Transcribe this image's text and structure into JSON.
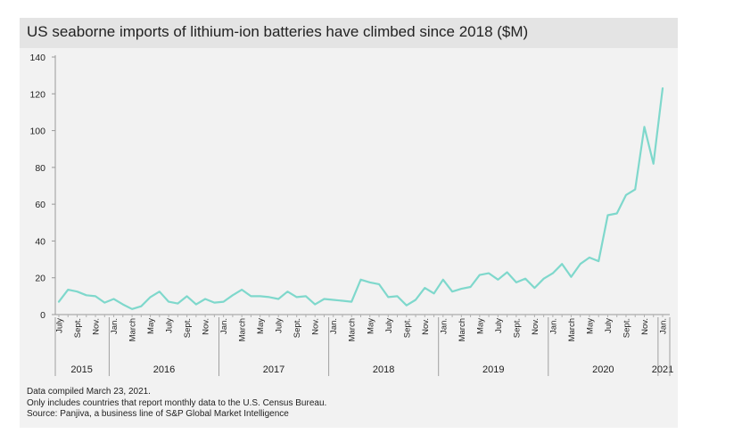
{
  "chart_data": {
    "type": "line",
    "title": "US seaborne imports of lithium-ion batteries have climbed since 2018 ($M)",
    "xlabel": "",
    "ylabel": "",
    "ylim": [
      0,
      140
    ],
    "y_ticks": [
      0,
      20,
      40,
      60,
      80,
      100,
      120,
      140
    ],
    "grid": false,
    "legend": "none",
    "line_color": "#7fd8cc",
    "x": [
      "2015-07",
      "2015-08",
      "2015-09",
      "2015-10",
      "2015-11",
      "2015-12",
      "2016-01",
      "2016-02",
      "2016-03",
      "2016-04",
      "2016-05",
      "2016-06",
      "2016-07",
      "2016-08",
      "2016-09",
      "2016-10",
      "2016-11",
      "2016-12",
      "2017-01",
      "2017-02",
      "2017-03",
      "2017-04",
      "2017-05",
      "2017-06",
      "2017-07",
      "2017-08",
      "2017-09",
      "2017-10",
      "2017-11",
      "2017-12",
      "2018-01",
      "2018-02",
      "2018-03",
      "2018-04",
      "2018-05",
      "2018-06",
      "2018-07",
      "2018-08",
      "2018-09",
      "2018-10",
      "2018-11",
      "2018-12",
      "2019-01",
      "2019-02",
      "2019-03",
      "2019-04",
      "2019-05",
      "2019-06",
      "2019-07",
      "2019-08",
      "2019-09",
      "2019-10",
      "2019-11",
      "2019-12",
      "2020-01",
      "2020-02",
      "2020-03",
      "2020-04",
      "2020-05",
      "2020-06",
      "2020-07",
      "2020-08",
      "2020-09",
      "2020-10",
      "2020-11",
      "2020-12",
      "2021-01"
    ],
    "values": [
      7,
      13.5,
      12.5,
      10.5,
      10,
      6.5,
      8.5,
      5.5,
      3,
      4.5,
      9.5,
      12.5,
      7,
      6,
      10,
      5.5,
      8.5,
      6.5,
      7,
      10.5,
      13.5,
      10,
      10,
      9.5,
      8.5,
      12.5,
      9.5,
      10,
      5.5,
      8.5,
      8,
      7.5,
      7,
      19,
      17.5,
      16.5,
      9.5,
      10,
      5,
      8,
      14.5,
      11.5,
      19,
      12.5,
      14,
      15,
      21.5,
      22.5,
      19,
      23,
      17.5,
      19.5,
      14.5,
      19.5,
      22.5,
      27.5,
      20.5,
      27.5,
      31,
      29,
      54,
      55,
      65,
      68,
      102,
      82,
      123
    ],
    "month_ticks": [
      {
        "label": "July",
        "x": "2015-07"
      },
      {
        "label": "Sept.",
        "x": "2015-09"
      },
      {
        "label": "Nov.",
        "x": "2015-11"
      },
      {
        "label": "Jan.",
        "x": "2016-01"
      },
      {
        "label": "March",
        "x": "2016-03"
      },
      {
        "label": "May",
        "x": "2016-05"
      },
      {
        "label": "July",
        "x": "2016-07"
      },
      {
        "label": "Sept.",
        "x": "2016-09"
      },
      {
        "label": "Nov.",
        "x": "2016-11"
      },
      {
        "label": "Jan.",
        "x": "2017-01"
      },
      {
        "label": "March",
        "x": "2017-03"
      },
      {
        "label": "May",
        "x": "2017-05"
      },
      {
        "label": "July",
        "x": "2017-07"
      },
      {
        "label": "Sept.",
        "x": "2017-09"
      },
      {
        "label": "Nov.",
        "x": "2017-11"
      },
      {
        "label": "Jan.",
        "x": "2018-01"
      },
      {
        "label": "March",
        "x": "2018-03"
      },
      {
        "label": "May",
        "x": "2018-05"
      },
      {
        "label": "July",
        "x": "2018-07"
      },
      {
        "label": "Sept.",
        "x": "2018-09"
      },
      {
        "label": "Nov.",
        "x": "2018-11"
      },
      {
        "label": "Jan.",
        "x": "2019-01"
      },
      {
        "label": "March",
        "x": "2019-03"
      },
      {
        "label": "May",
        "x": "2019-05"
      },
      {
        "label": "July",
        "x": "2019-07"
      },
      {
        "label": "Sept.",
        "x": "2019-09"
      },
      {
        "label": "Nov.",
        "x": "2019-11"
      },
      {
        "label": "Jan.",
        "x": "2020-01"
      },
      {
        "label": "March",
        "x": "2020-03"
      },
      {
        "label": "May",
        "x": "2020-05"
      },
      {
        "label": "July",
        "x": "2020-07"
      },
      {
        "label": "Sept.",
        "x": "2020-09"
      },
      {
        "label": "Nov.",
        "x": "2020-11"
      },
      {
        "label": "Jan.",
        "x": "2021-01"
      }
    ],
    "years": [
      {
        "label": "2015",
        "start": "2015-07",
        "end": "2015-12"
      },
      {
        "label": "2016",
        "start": "2016-01",
        "end": "2016-12"
      },
      {
        "label": "2017",
        "start": "2017-01",
        "end": "2017-12"
      },
      {
        "label": "2018",
        "start": "2018-01",
        "end": "2018-12"
      },
      {
        "label": "2019",
        "start": "2019-01",
        "end": "2019-12"
      },
      {
        "label": "2020",
        "start": "2020-01",
        "end": "2020-12"
      },
      {
        "label": "2021",
        "start": "2021-01",
        "end": "2021-01"
      }
    ]
  },
  "notes": [
    "Data compiled March 23, 2021.",
    "Only includes countries that report monthly data to the U.S. Census Bureau.",
    "Source: Panjiva, a business line of S&P Global Market Intelligence"
  ]
}
